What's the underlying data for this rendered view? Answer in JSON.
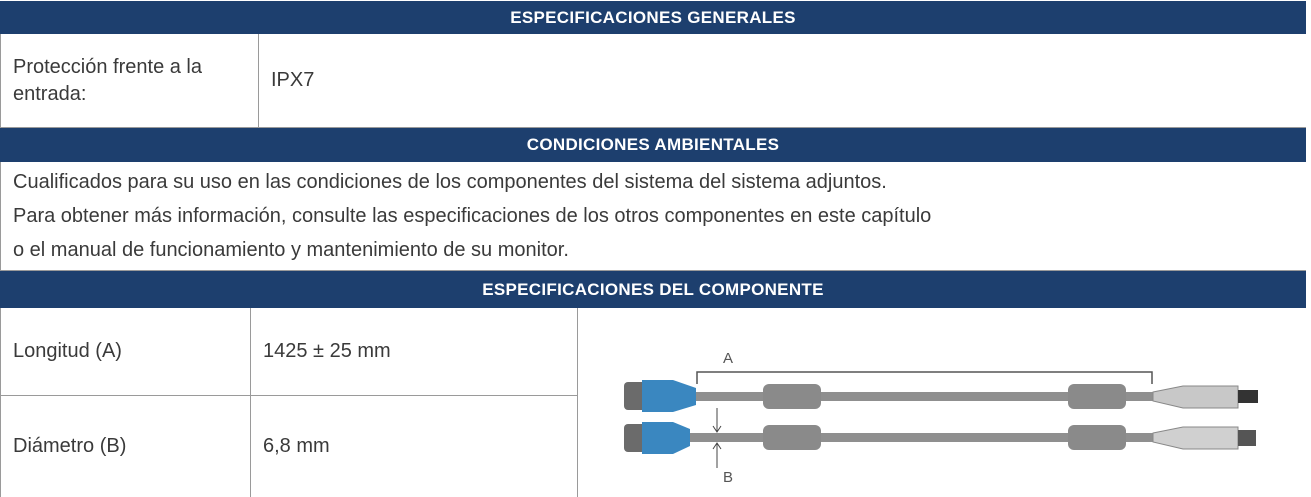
{
  "sections": [
    {
      "title": "ESPECIFICACIONES GENERALES",
      "rows": [
        [
          "Protección frente a la entrada:",
          "IPX7"
        ]
      ]
    },
    {
      "title": "CONDICIONES AMBIENTALES",
      "lines": [
        "Cualificados para su uso en las condiciones de los componentes del sistema del sistema adjuntos.",
        "Para obtener más información, consulte las especificaciones de los otros componentes en este capítulo",
        "o el manual de funcionamiento y mantenimiento de su monitor."
      ]
    },
    {
      "title": "ESPECIFICACIONES DEL COMPONENTE",
      "rows": [
        [
          "Longitud (A)",
          "1425 ± 25 mm"
        ],
        [
          "Diámetro (B)",
          "6,8 mm"
        ]
      ],
      "figure_labels": [
        "A",
        "B"
      ]
    }
  ]
}
